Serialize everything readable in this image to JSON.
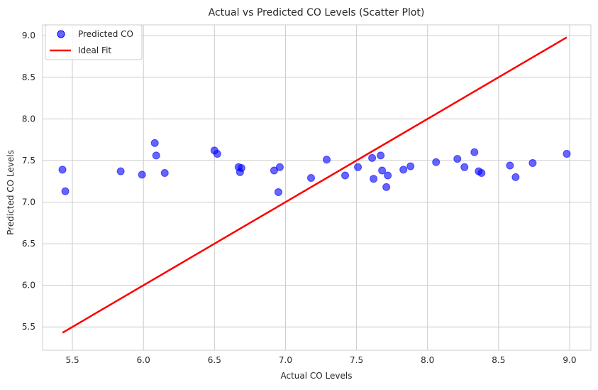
{
  "chart_data": {
    "type": "scatter",
    "title": "Actual vs Predicted CO Levels (Scatter Plot)",
    "xlabel": "Actual CO Levels",
    "ylabel": "Predicted CO Levels",
    "xlim": [
      5.29,
      9.15
    ],
    "ylim": [
      5.22,
      9.13
    ],
    "xticks": [
      "5.5",
      "6.0",
      "6.5",
      "7.0",
      "7.5",
      "8.0",
      "8.5",
      "9.0"
    ],
    "yticks": [
      "5.5",
      "6.0",
      "6.5",
      "7.0",
      "7.5",
      "8.0",
      "8.5",
      "9.0"
    ],
    "grid": true,
    "legend_position": "top-left",
    "series": [
      {
        "name": "Predicted CO",
        "kind": "scatter",
        "color": "#0000ff",
        "points": [
          [
            5.43,
            7.39
          ],
          [
            5.45,
            7.13
          ],
          [
            5.84,
            7.37
          ],
          [
            5.99,
            7.33
          ],
          [
            6.08,
            7.71
          ],
          [
            6.09,
            7.56
          ],
          [
            6.15,
            7.35
          ],
          [
            6.5,
            7.62
          ],
          [
            6.52,
            7.58
          ],
          [
            6.67,
            7.42
          ],
          [
            6.68,
            7.36
          ],
          [
            6.69,
            7.41
          ],
          [
            6.92,
            7.38
          ],
          [
            6.95,
            7.12
          ],
          [
            6.96,
            7.42
          ],
          [
            7.18,
            7.29
          ],
          [
            7.29,
            7.51
          ],
          [
            7.42,
            7.32
          ],
          [
            7.51,
            7.42
          ],
          [
            7.61,
            7.53
          ],
          [
            7.62,
            7.28
          ],
          [
            7.67,
            7.56
          ],
          [
            7.68,
            7.38
          ],
          [
            7.71,
            7.18
          ],
          [
            7.72,
            7.32
          ],
          [
            7.83,
            7.39
          ],
          [
            7.88,
            7.43
          ],
          [
            8.06,
            7.48
          ],
          [
            8.21,
            7.52
          ],
          [
            8.26,
            7.42
          ],
          [
            8.33,
            7.6
          ],
          [
            8.36,
            7.37
          ],
          [
            8.38,
            7.35
          ],
          [
            8.58,
            7.44
          ],
          [
            8.62,
            7.3
          ],
          [
            8.74,
            7.47
          ],
          [
            8.98,
            7.58
          ]
        ]
      },
      {
        "name": "Ideal Fit",
        "kind": "line",
        "color": "#ff0000",
        "points": [
          [
            5.43,
            5.43
          ],
          [
            8.98,
            8.98
          ]
        ]
      }
    ]
  }
}
